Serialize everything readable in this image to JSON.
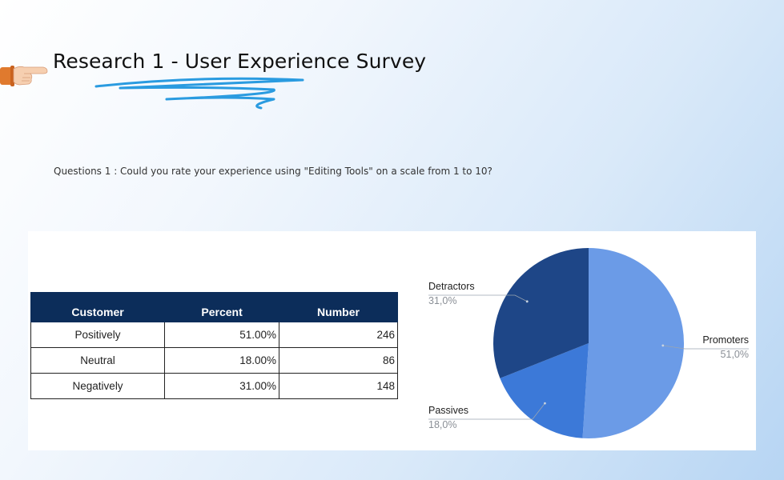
{
  "header": {
    "title": "Research 1 - User Experience Survey"
  },
  "question": "Questions 1 : Could you rate your experience using \"Editing Tools\" on a scale from 1 to 10?",
  "table": {
    "headers": [
      "Customer",
      "Percent",
      "Number"
    ],
    "rows": [
      {
        "customer": "Positively",
        "percent": "51.00%",
        "number": "246"
      },
      {
        "customer": "Neutral",
        "percent": "18.00%",
        "number": "86"
      },
      {
        "customer": "Negatively",
        "percent": "31.00%",
        "number": "148"
      }
    ]
  },
  "colors": {
    "promoters": "#6b9be7",
    "passives": "#3c79d8",
    "detractors": "#1e4687",
    "table_header": "#0c2d5a",
    "swoosh": "#2a9be0"
  },
  "icons": [
    "pointing-hand-icon"
  ],
  "chart_data": {
    "type": "pie",
    "slices": [
      {
        "label": "Promoters",
        "value": 51.0,
        "display": "51,0%"
      },
      {
        "label": "Passives",
        "value": 18.0,
        "display": "18,0%"
      },
      {
        "label": "Detractors",
        "value": 31.0,
        "display": "31,0%"
      }
    ],
    "start_angle_deg": 0,
    "direction": "clockwise",
    "legend": "labels-outside"
  }
}
